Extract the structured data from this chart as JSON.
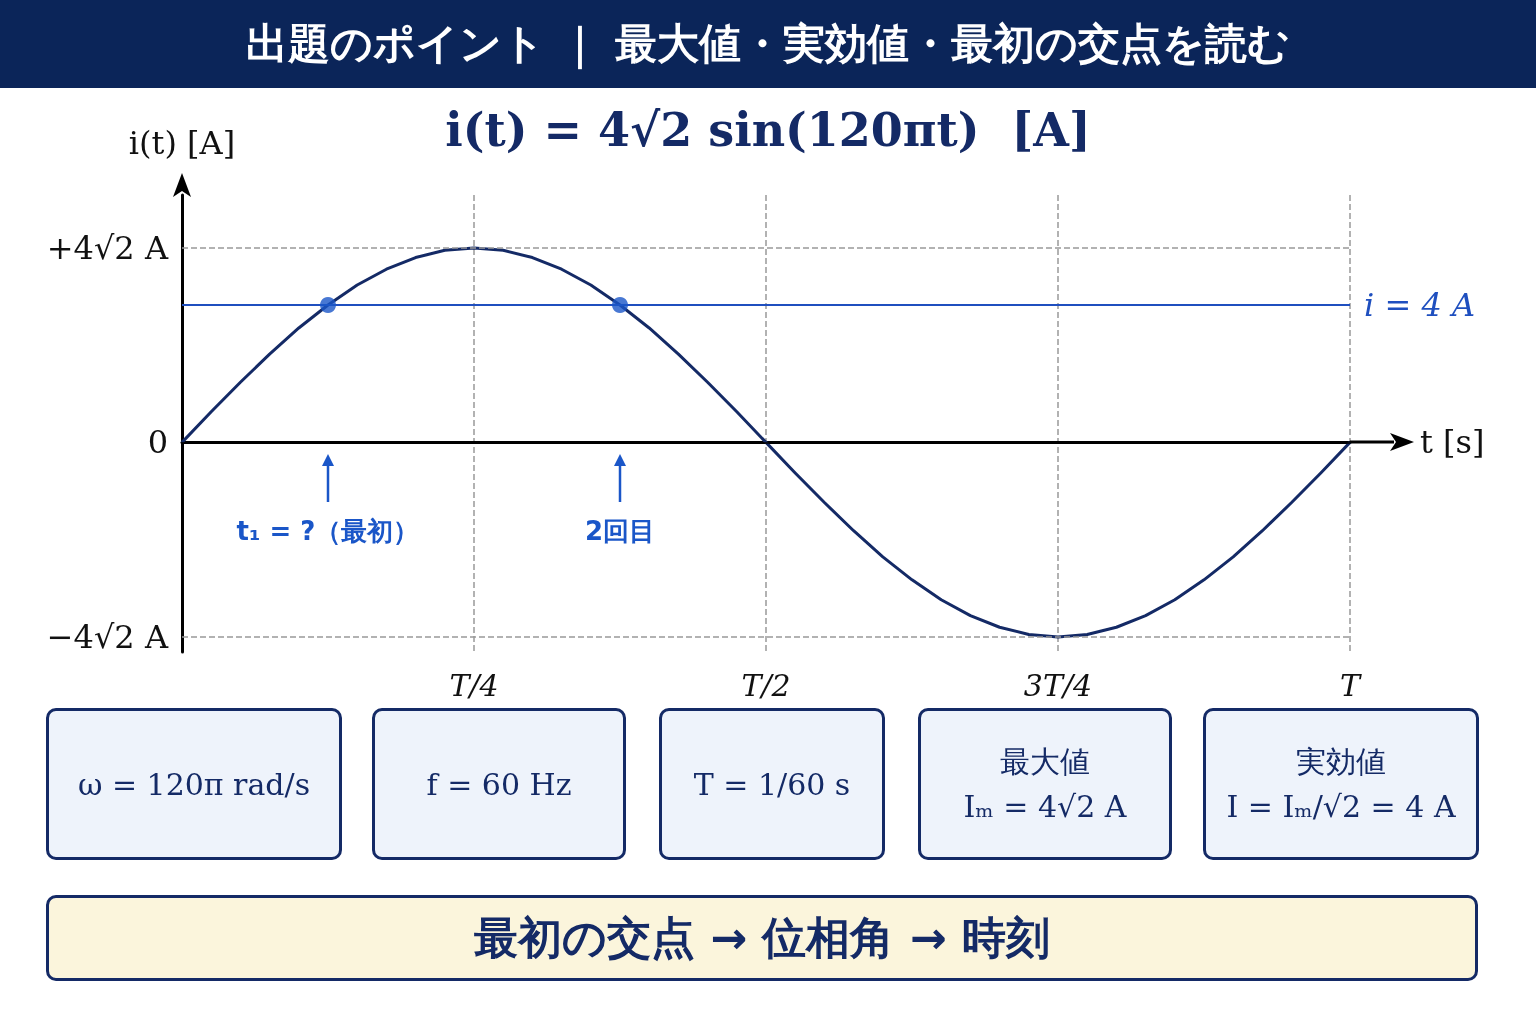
{
  "chart_data": {
    "type": "line",
    "title": "出題のポイント ｜ 最大値・実効値・最初の交点を読む",
    "subtitle": "i(t) = 4√2 sin(120πt)  [A]",
    "xlabel": "t [s]",
    "ylabel": "i(t) [A]",
    "categories": [
      null,
      null,
      null,
      null,
      null,
      null,
      null,
      null,
      null,
      null,
      "T/4",
      null,
      null,
      null,
      null,
      null,
      null,
      null,
      null,
      null,
      "T/2",
      null,
      null,
      null,
      null,
      null,
      null,
      null,
      null,
      null,
      "3T/4",
      null,
      null,
      null,
      null,
      null,
      null,
      null,
      null,
      null,
      "T"
    ],
    "series": [
      {
        "color": "#142a66",
        "marker": "none",
        "values": [
          0,
          0.89,
          1.75,
          2.57,
          3.33,
          4.0,
          4.58,
          5.04,
          5.38,
          5.59,
          5.66,
          5.59,
          5.38,
          5.04,
          4.58,
          4.0,
          3.33,
          2.57,
          1.75,
          0.89,
          0,
          -0.89,
          -1.75,
          -2.57,
          -3.33,
          -4.0,
          -4.58,
          -5.04,
          -5.38,
          -5.59,
          -5.66,
          -5.59,
          -5.38,
          -5.04,
          -4.58,
          -4.0,
          -3.33,
          -2.57,
          -1.75,
          -0.89,
          0
        ]
      },
      {
        "type": "scatter",
        "color": "#1a56c8",
        "marker": "circle",
        "values": [
          null,
          null,
          null,
          null,
          null,
          4.0,
          null,
          null,
          null,
          null,
          null,
          null,
          null,
          null,
          null,
          4.0,
          null,
          null,
          null,
          null,
          null,
          null,
          null,
          null,
          null,
          null,
          null,
          null,
          null,
          null,
          null,
          null,
          null,
          null,
          null,
          null,
          null,
          null,
          null,
          null,
          null
        ]
      }
    ],
    "ylim": [
      -6.1,
      7.2
    ],
    "tick_labels": "x",
    "grid": "x",
    "ref_lines": [
      {
        "axis": "y",
        "value": 5.66,
        "label": "+4√2 A",
        "color": "#999999",
        "line_style": "dashed"
      },
      {
        "axis": "y",
        "value": 0,
        "label": "0",
        "color": "#000000",
        "line_style": "solid"
      },
      {
        "axis": "y",
        "value": -5.66,
        "label": "−4√2 A",
        "color": "#999999",
        "line_style": "dashed"
      },
      {
        "axis": "y",
        "value": 4,
        "label": "i = 4 A",
        "color": "#1f4fbf",
        "line_style": "solid"
      }
    ],
    "annotations": [
      "t₁ = ?（最初）",
      "2回目",
      "ω = 120π rad/s",
      "f = 60 Hz",
      "T = 1/60 s",
      "最大値\nIₘ = 4√2 A",
      "実効値\nI = Iₘ/√2 = 4 A",
      "最初の交点 → 位相角 → 時刻"
    ]
  }
}
